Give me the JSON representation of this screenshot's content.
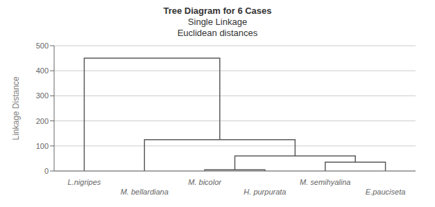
{
  "chart_data": {
    "type": "dendrogram",
    "title": "Tree Diagram for 6 Cases",
    "subtitle": [
      "Single Linkage",
      "Euclidean distances"
    ],
    "y_label": "Linkage Distance",
    "categories": [
      "L.nigripes",
      "M. bellardiana",
      "M. bicolor",
      "H. purpurata",
      "M. semihyalina",
      "E.pauciseta"
    ],
    "clusters": [
      {
        "left": [
          "M. bicolor"
        ],
        "right": [
          "H. purpurata"
        ],
        "value": 5
      },
      {
        "left": [
          "M. semihyalina"
        ],
        "right": [
          "E.pauciseta"
        ],
        "value": 35
      },
      {
        "left": [
          "M. bicolor",
          "H. purpurata"
        ],
        "right": [
          "M. semihyalina",
          "E.pauciseta"
        ],
        "value": 60
      },
      {
        "left": [
          "M. bellardiana"
        ],
        "right": [
          "M. bicolor",
          "H. purpurata",
          "M. semihyalina",
          "E.pauciseta"
        ],
        "value": 125
      },
      {
        "left": [
          "L.nigripes"
        ],
        "right": [
          "M. bellardiana",
          "M. bicolor",
          "H. purpurata",
          "M. semihyalina",
          "E.pauciseta"
        ],
        "value": 450
      }
    ],
    "color": "#5a5a5a",
    "ylim": [
      0,
      500
    ],
    "yticks": [
      0,
      100,
      200,
      300,
      400,
      500
    ],
    "grid": true
  }
}
